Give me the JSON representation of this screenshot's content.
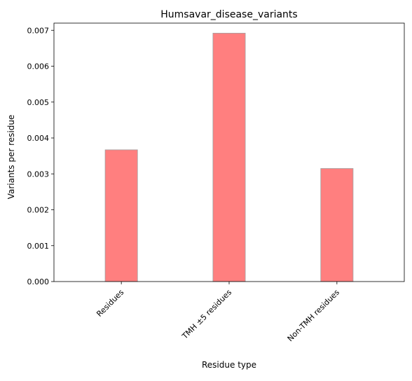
{
  "chart_data": {
    "type": "bar",
    "title": "Humsavar_disease_variants",
    "xlabel": "Residue type",
    "ylabel": "Variants per residue",
    "categories": [
      "Residues",
      "TMH ±5 residues",
      "Non-TMH residues"
    ],
    "values": [
      0.00367,
      0.00692,
      0.00315
    ],
    "ylim": [
      0,
      0.0072
    ],
    "yticks": [
      0.0,
      0.001,
      0.002,
      0.003,
      0.004,
      0.005,
      0.006,
      0.007
    ],
    "ytick_labels": [
      "0.000",
      "0.001",
      "0.002",
      "0.003",
      "0.004",
      "0.005",
      "0.006",
      "0.007"
    ],
    "grid": false,
    "legend": "none",
    "bar_color": "#ff7f7f",
    "bar_edge_color": "#a0a0a0",
    "xtick_rotation": 45
  }
}
